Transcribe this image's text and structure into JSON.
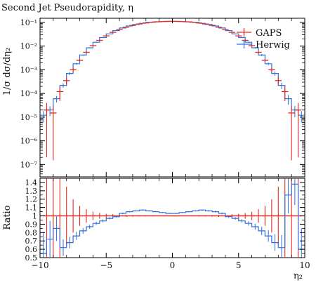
{
  "chart_data": {
    "type": "line",
    "title": "Second Jet Pseudorapidity, η",
    "main_ylabel": "1/σ dσ/dη₂",
    "ratio_ylabel": "Ratio",
    "xlabel": "η₂",
    "xlim": [
      -10,
      10
    ],
    "main_ylim": [
      3e-08,
      0.15
    ],
    "main_yscale": "log",
    "ratio_ylim": [
      0.5,
      1.45
    ],
    "x_ticks": [
      -10,
      -5,
      0,
      5,
      10
    ],
    "x_tick_labels": [
      "−10",
      "−5",
      "0",
      "5",
      "10"
    ],
    "main_y_ticks": [
      {
        "value": 0.1,
        "label": "10⁻¹"
      },
      {
        "value": 0.01,
        "label": "10⁻²"
      },
      {
        "value": 0.001,
        "label": "10⁻³"
      },
      {
        "value": 0.0001,
        "label": "10⁻⁴"
      },
      {
        "value": 1e-05,
        "label": "10⁻⁵"
      },
      {
        "value": 1e-06,
        "label": "10⁻⁶"
      },
      {
        "value": 1e-07,
        "label": "10⁻⁷"
      }
    ],
    "ratio_y_ticks": [
      0.5,
      0.6,
      0.7,
      0.8,
      0.9,
      1,
      1.1,
      1.2,
      1.3,
      1.4
    ],
    "ratio_y_tick_labels": [
      "0.5",
      "0.6",
      "0.7",
      "0.8",
      "0.9",
      "1",
      "1.1",
      "1.2",
      "1.3",
      "1.4"
    ],
    "legend_position": "top-right",
    "series": [
      {
        "name": "GAPS",
        "color": "#e8291c",
        "style": "errorbars",
        "x": [
          -9.5,
          -9.0,
          -8.5,
          -8.0,
          -7.5,
          -7.0,
          -6.5,
          -6.0,
          -5.5,
          -5.0,
          -4.5,
          -4.0,
          -3.5,
          -3.0,
          -2.5,
          -2.0,
          -1.5,
          -1.0,
          -0.5,
          0.0,
          0.5,
          1.0,
          1.5,
          2.0,
          2.5,
          3.0,
          3.5,
          4.0,
          4.5,
          5.0,
          5.5,
          6.0,
          6.5,
          7.0,
          7.5,
          8.0,
          8.5,
          9.0,
          9.5
        ],
        "y": [
          2e-05,
          1.5e-05,
          0.00012,
          0.00035,
          0.001,
          0.0025,
          0.0055,
          0.0105,
          0.0175,
          0.027,
          0.038,
          0.05,
          0.063,
          0.075,
          0.086,
          0.095,
          0.102,
          0.107,
          0.11,
          0.111,
          0.11,
          0.107,
          0.102,
          0.095,
          0.086,
          0.075,
          0.063,
          0.05,
          0.038,
          0.027,
          0.0175,
          0.0105,
          0.0055,
          0.0025,
          0.001,
          0.00035,
          0.00012,
          1.5e-05,
          2e-05
        ],
        "yerr_rel": [
          0.99,
          0.99,
          0.6,
          0.35,
          0.2,
          0.12,
          0.08,
          0.05,
          0.035,
          0.025,
          0.02,
          0.015,
          0.012,
          0.01,
          0.008,
          0.007,
          0.006,
          0.005,
          0.005,
          0.005,
          0.005,
          0.005,
          0.006,
          0.007,
          0.008,
          0.01,
          0.012,
          0.015,
          0.02,
          0.025,
          0.035,
          0.05,
          0.08,
          0.12,
          0.2,
          0.35,
          0.6,
          0.99,
          0.99
        ]
      },
      {
        "name": "Herwig",
        "color": "#2f6fe0",
        "style": "step",
        "x": [
          -9.75,
          -9.25,
          -8.75,
          -8.25,
          -7.75,
          -7.25,
          -6.75,
          -6.25,
          -5.75,
          -5.25,
          -4.75,
          -4.25,
          -3.75,
          -3.25,
          -2.75,
          -2.25,
          -1.75,
          -1.25,
          -0.75,
          -0.25,
          0.25,
          0.75,
          1.25,
          1.75,
          2.25,
          2.75,
          3.25,
          3.75,
          4.25,
          4.75,
          5.25,
          5.75,
          6.25,
          6.75,
          7.25,
          7.75,
          8.25,
          8.75,
          9.25,
          9.75
        ],
        "y": [
          1.2e-05,
          2e-05,
          6e-05,
          0.00022,
          0.0007,
          0.0018,
          0.0042,
          0.0085,
          0.0145,
          0.023,
          0.033,
          0.045,
          0.058,
          0.071,
          0.082,
          0.092,
          0.1,
          0.106,
          0.109,
          0.111,
          0.111,
          0.109,
          0.106,
          0.1,
          0.092,
          0.082,
          0.071,
          0.058,
          0.045,
          0.033,
          0.023,
          0.0145,
          0.0085,
          0.0042,
          0.0018,
          0.0007,
          0.00022,
          6e-05,
          2e-05,
          1.2e-05
        ],
        "ratio": [
          0.55,
          0.72,
          0.85,
          0.62,
          0.68,
          0.76,
          0.82,
          0.87,
          0.91,
          0.94,
          0.97,
          0.99,
          1.03,
          1.05,
          1.06,
          1.07,
          1.06,
          1.05,
          1.04,
          1.03,
          1.03,
          1.04,
          1.05,
          1.06,
          1.07,
          1.06,
          1.05,
          1.03,
          0.99,
          0.97,
          0.94,
          0.91,
          0.87,
          0.82,
          0.76,
          0.68,
          0.62,
          1.25,
          1.38,
          0.6
        ],
        "ratio_err": [
          0.25,
          0.22,
          0.15,
          0.1,
          0.07,
          0.05,
          0.035,
          0.025,
          0.02,
          0.016,
          0.013,
          0.011,
          0.01,
          0.009,
          0.008,
          0.007,
          0.007,
          0.006,
          0.006,
          0.006,
          0.006,
          0.006,
          0.007,
          0.007,
          0.008,
          0.009,
          0.01,
          0.011,
          0.013,
          0.016,
          0.02,
          0.025,
          0.035,
          0.05,
          0.07,
          0.1,
          0.15,
          0.22,
          0.25,
          0.25
        ]
      }
    ]
  }
}
